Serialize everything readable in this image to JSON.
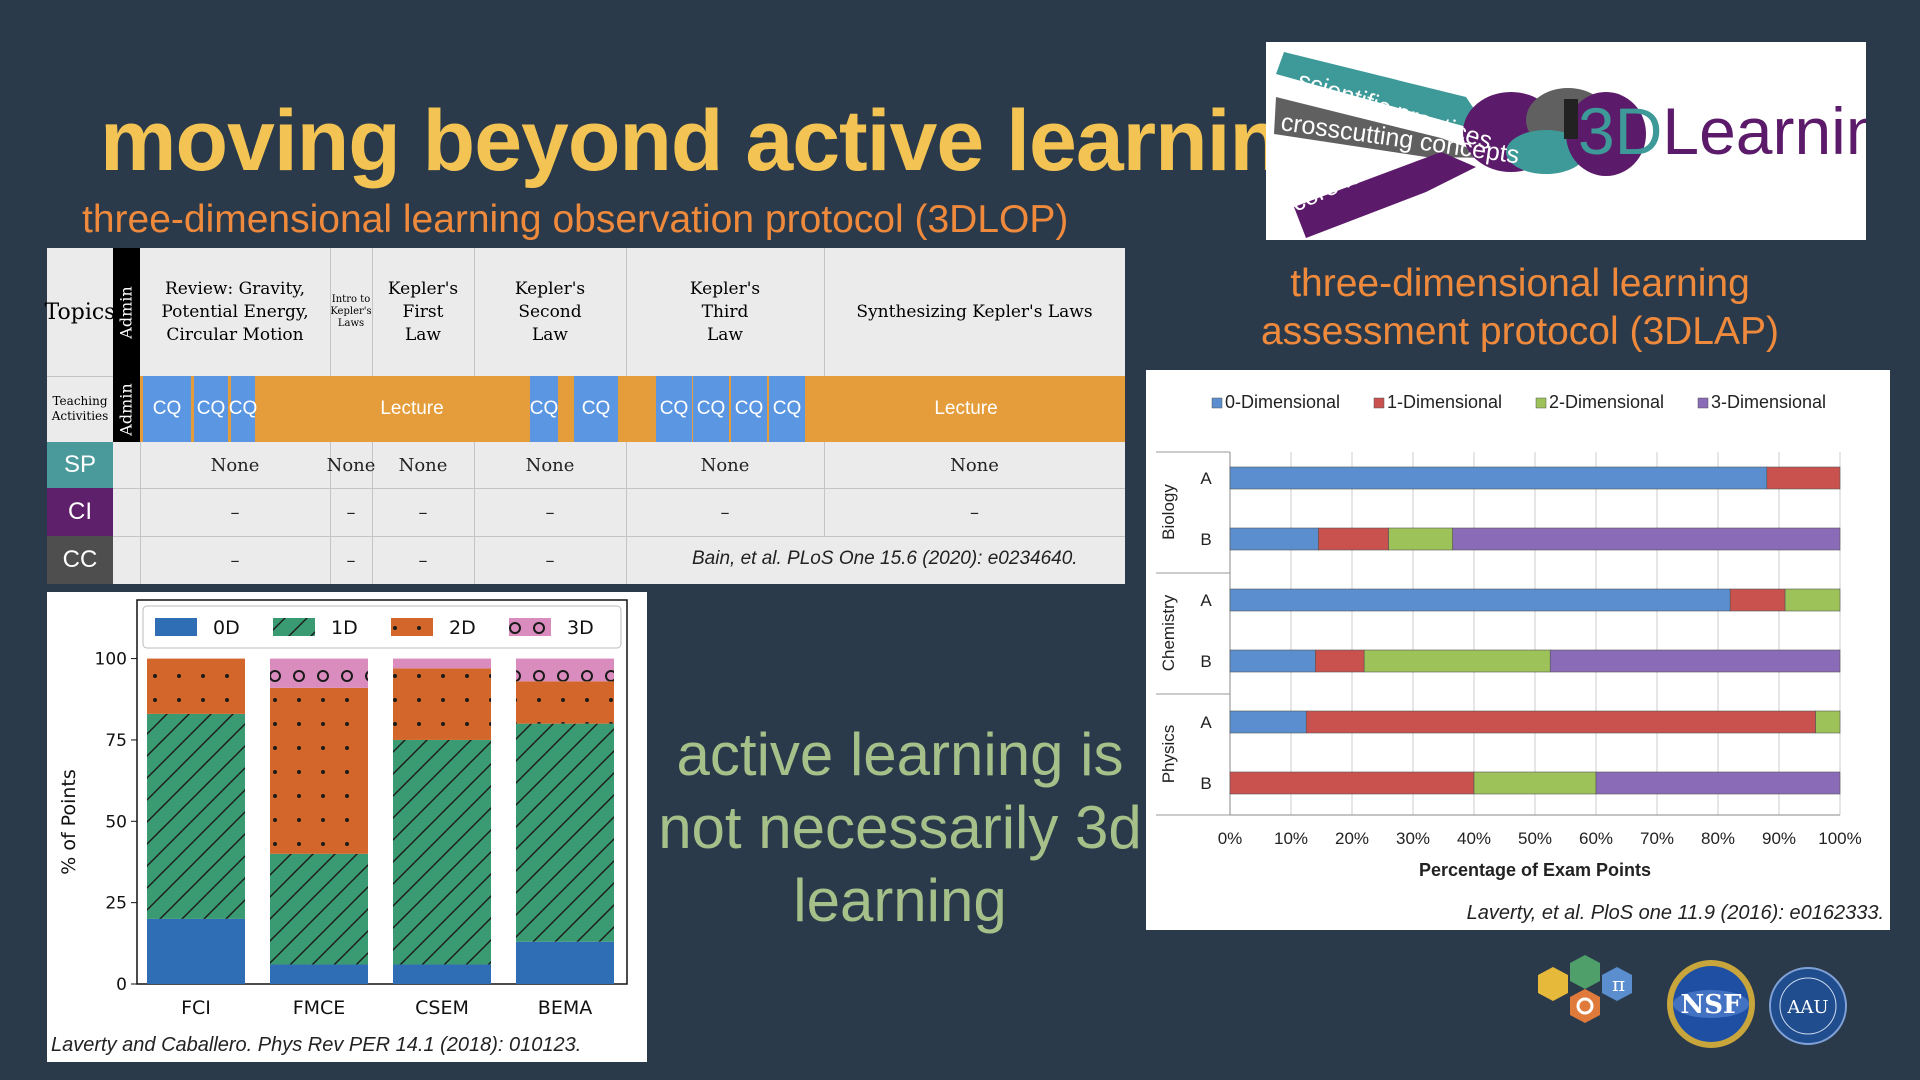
{
  "title": "moving beyond active learning",
  "subtitle_left": "three-dimensional learning observation protocol (3DLOP)",
  "subtitle_right": "three-dimensional learning assessment protocol (3DLAP)",
  "middle_text": "active learning is not necessarily 3d learning",
  "logo": {
    "strands": [
      "scientific practices",
      "crosscutting concepts",
      "core ideas"
    ],
    "wordmark_a": "3D",
    "wordmark_b": "Learning"
  },
  "lop_table": {
    "topics_label": "Topics",
    "admin_label": "Admin",
    "teaching_label": "Teaching Activities",
    "topics": [
      "Review: Gravity, Potential Energy, Circular Motion",
      "Intro to Kepler's Laws",
      "Kepler's First Law",
      "Kepler's Second Law",
      "Kepler's Third Law",
      "Synthesizing Kepler's Laws"
    ],
    "activities": [
      "CQ",
      "CQ",
      "CQ",
      "Lecture",
      "CQ",
      "CQ",
      "CQ",
      "CQ",
      "CQ",
      "CQ",
      "Lecture"
    ],
    "dims": [
      "SP",
      "CI",
      "CC"
    ],
    "dim_colors": [
      "#4a9a9c",
      "#5e1f6b",
      "#4e4e4e"
    ],
    "sp_values": [
      "None",
      "None",
      "None",
      "None",
      "None",
      "None"
    ],
    "dash": "–",
    "citation": "Bain, et al. PLoS One 15.6 (2020): e0234640."
  },
  "chart_laverty": {
    "citation": "Laverty, et al. PloS one 11.9 (2016): e0162333.",
    "chart_data": {
      "type": "bar",
      "orientation": "horizontal",
      "stacked": true,
      "legend": [
        "0-Dimensional",
        "1-Dimensional",
        "2-Dimensional",
        "3-Dimensional"
      ],
      "colors": [
        "#5b8ecf",
        "#c9514e",
        "#9dc25a",
        "#8a6bb8"
      ],
      "groups": [
        "Biology",
        "Chemistry",
        "Physics"
      ],
      "rows": [
        {
          "group": "Biology",
          "label": "A",
          "values": [
            88,
            12,
            0,
            0
          ]
        },
        {
          "group": "Biology",
          "label": "B",
          "values": [
            14.5,
            11.5,
            10.5,
            63.5
          ]
        },
        {
          "group": "Chemistry",
          "label": "A",
          "values": [
            82,
            9,
            9,
            0
          ]
        },
        {
          "group": "Chemistry",
          "label": "B",
          "values": [
            14,
            8,
            30.5,
            47.5
          ]
        },
        {
          "group": "Physics",
          "label": "A",
          "values": [
            12.5,
            83.5,
            4,
            0
          ]
        },
        {
          "group": "Physics",
          "label": "B",
          "values": [
            0,
            40,
            20,
            40
          ]
        }
      ],
      "xticks": [
        "0%",
        "10%",
        "20%",
        "30%",
        "40%",
        "50%",
        "60%",
        "70%",
        "80%",
        "90%",
        "100%"
      ],
      "xlabel": "Percentage of Exam Points",
      "xlim": [
        0,
        100
      ],
      "grid": true,
      "legend_position": "top"
    }
  },
  "chart_caballero": {
    "citation": "Laverty and Caballero. Phys Rev PER 14.1 (2018): 010123.",
    "chart_data": {
      "type": "bar",
      "stacked": true,
      "categories": [
        "FCI",
        "FMCE",
        "CSEM",
        "BEMA"
      ],
      "series": [
        {
          "name": "0D",
          "values": [
            20,
            6,
            6,
            13
          ],
          "color": "#2f6eb5"
        },
        {
          "name": "1D",
          "values": [
            63,
            34,
            69,
            67
          ],
          "color": "#3a9a72"
        },
        {
          "name": "2D",
          "values": [
            17,
            51,
            22,
            13
          ],
          "color": "#d3662a"
        },
        {
          "name": "3D",
          "values": [
            0,
            9,
            3,
            7
          ],
          "color": "#d98cbd"
        }
      ],
      "ylabel": "% of Points",
      "yticks": [
        "0",
        "25",
        "50",
        "75",
        "100"
      ],
      "ylim": [
        0,
        118
      ],
      "legend_position": "top"
    }
  },
  "partner_logos": [
    "hexagon-disciplines-logo",
    "nsf-logo",
    "aau-logo"
  ]
}
